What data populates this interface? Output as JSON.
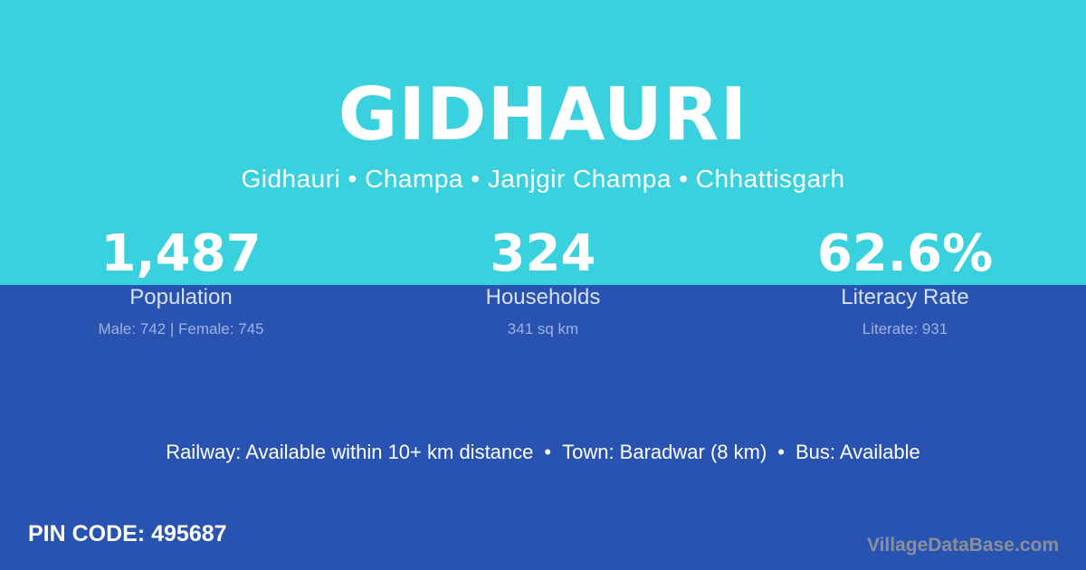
{
  "colors": {
    "top_background": "#38d1dd",
    "bottom_background": "#2853b0",
    "text": "#ffffff"
  },
  "village": {
    "name": "GIDHAURI",
    "breadcrumb": "Gidhauri • Champa • Janjgir Champa • Chhattisgarh"
  },
  "stats": [
    {
      "value": "1,487",
      "label": "Population",
      "detail": "Male: 742 | Female: 745"
    },
    {
      "value": "324",
      "label": "Households",
      "detail": "341 sq km"
    },
    {
      "value": "62.6%",
      "label": "Literacy Rate",
      "detail": "Literate: 931"
    }
  ],
  "facilities": {
    "railway": "Railway: Available within 10+ km distance",
    "town": "Town: Baradwar (8 km)",
    "bus": "Bus: Available",
    "separator": "•"
  },
  "pin_code": "PIN CODE: 495687",
  "brand": "VillageDataBase.com"
}
